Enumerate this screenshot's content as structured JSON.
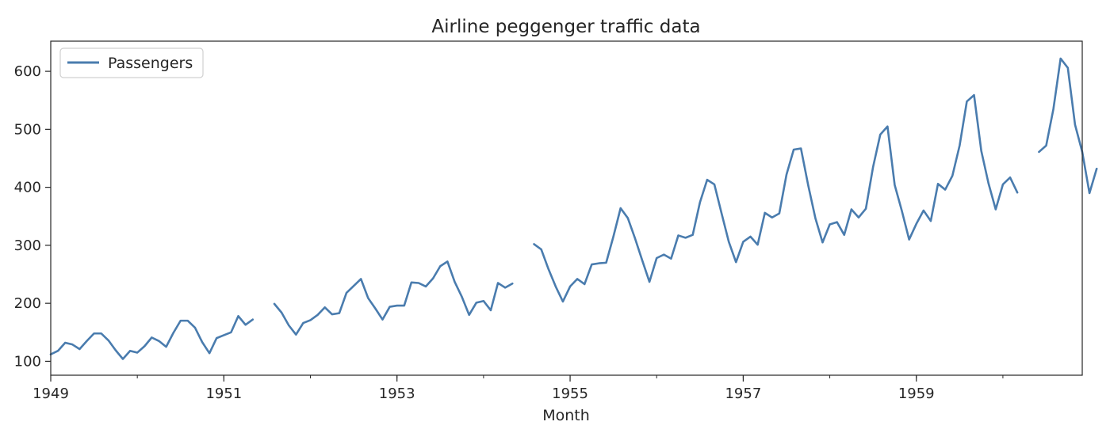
{
  "chart_data": {
    "type": "line",
    "title": "Airline peggenger traffic data",
    "xlabel": "Month",
    "ylabel": "",
    "x_start": "1949-01",
    "x_end": "1960-12",
    "xlim": [
      "1949-01",
      "1960-12"
    ],
    "ylim": [
      76,
      652
    ],
    "x_ticks": [
      {
        "label": "1949",
        "x": "1949-01"
      },
      {
        "label": "1951",
        "x": "1951-01"
      },
      {
        "label": "1953",
        "x": "1953-01"
      },
      {
        "label": "1955",
        "x": "1955-01"
      },
      {
        "label": "1957",
        "x": "1957-01"
      },
      {
        "label": "1959",
        "x": "1959-01"
      }
    ],
    "y_ticks": [
      100,
      200,
      300,
      400,
      500,
      600
    ],
    "grid": false,
    "legend_position": "top-left",
    "line_color": "#4a7cae",
    "series": [
      {
        "name": "Passengers",
        "values": [
          112,
          118,
          132,
          129,
          121,
          135,
          148,
          148,
          136,
          119,
          104,
          118,
          115,
          126,
          141,
          135,
          125,
          149,
          170,
          170,
          158,
          133,
          114,
          140,
          145,
          150,
          178,
          163,
          172,
          null,
          null,
          199,
          184,
          162,
          146,
          166,
          171,
          180,
          193,
          181,
          183,
          218,
          230,
          242,
          209,
          191,
          172,
          194,
          196,
          196,
          236,
          235,
          229,
          243,
          264,
          272,
          237,
          211,
          180,
          201,
          204,
          188,
          235,
          227,
          234,
          null,
          null,
          302,
          293,
          259,
          229,
          203,
          229,
          242,
          233,
          267,
          269,
          270,
          315,
          364,
          347,
          312,
          274,
          237,
          278,
          284,
          277,
          317,
          313,
          318,
          374,
          413,
          405,
          355,
          306,
          271,
          306,
          315,
          301,
          356,
          348,
          355,
          422,
          465,
          467,
          404,
          347,
          305,
          336,
          340,
          318,
          362,
          348,
          363,
          435,
          491,
          505,
          404,
          359,
          310,
          337,
          360,
          342,
          406,
          396,
          420,
          472,
          548,
          559,
          463,
          407,
          362,
          405,
          417,
          391,
          null,
          null,
          461,
          472,
          535,
          622,
          606,
          508,
          461,
          390,
          432
        ]
      }
    ]
  }
}
